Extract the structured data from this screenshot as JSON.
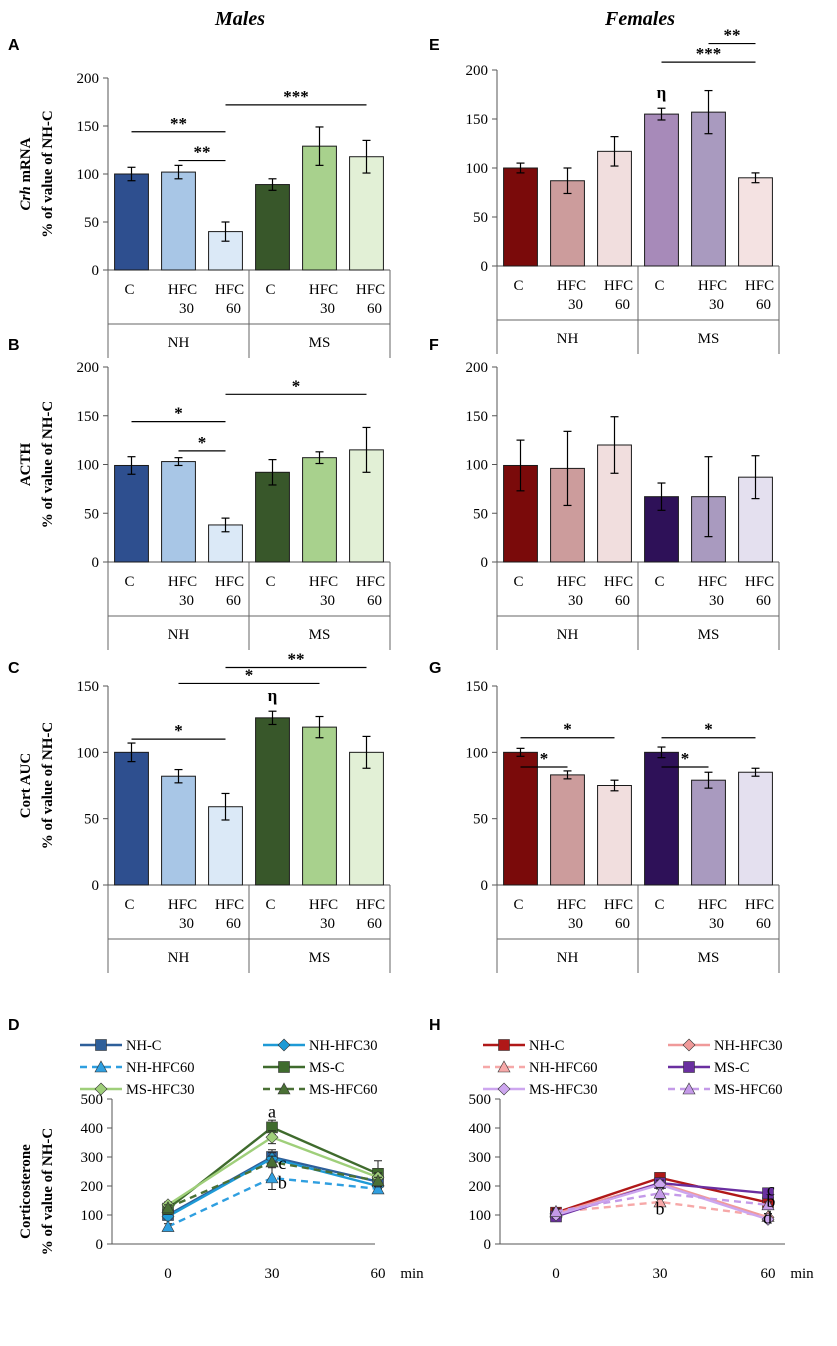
{
  "headers": {
    "males": "Males",
    "females": "Females"
  },
  "chart_data": [
    {
      "panel": "A",
      "type": "bar",
      "column": "males",
      "ylabel_italic": "Crh",
      "ylabel_rest": " mRNA",
      "ylabel2": "% of value  of NH-C",
      "ylim": [
        0,
        200
      ],
      "yticks": [
        0,
        50,
        100,
        150,
        200
      ],
      "categories": [
        [
          "C"
        ],
        [
          "HFC",
          "30"
        ],
        [
          "HFC",
          "60"
        ],
        [
          "C"
        ],
        [
          "HFC",
          "30"
        ],
        [
          "HFC",
          "60"
        ]
      ],
      "groups": [
        "NH",
        "MS"
      ],
      "values": [
        100,
        102,
        40,
        89,
        129,
        118
      ],
      "errors": [
        7,
        7,
        10,
        6,
        20,
        17
      ],
      "colors": [
        "#2e4f8f",
        "#a8c6e6",
        "#dbe9f7",
        "#38572a",
        "#a8d18d",
        "#e2f0d6"
      ],
      "brackets": [
        {
          "from": 0,
          "to": 2,
          "level": 0.72,
          "label": "**"
        },
        {
          "from": 1,
          "to": 2,
          "level": 0.57,
          "label": "**"
        },
        {
          "from": 2,
          "to": 5,
          "level": 0.86,
          "label": "***"
        }
      ],
      "markers": []
    },
    {
      "panel": "E",
      "type": "bar",
      "column": "females",
      "ylabel_italic": "",
      "ylabel_rest": "",
      "ylabel2": "",
      "ylim": [
        0,
        200
      ],
      "yticks": [
        0,
        50,
        100,
        150,
        200
      ],
      "categories": [
        [
          "C"
        ],
        [
          "HFC",
          "30"
        ],
        [
          "HFC",
          "60"
        ],
        [
          "C"
        ],
        [
          "HFC",
          "30"
        ],
        [
          "HFC",
          "60"
        ]
      ],
      "groups": [
        "NH",
        "MS"
      ],
      "values": [
        100,
        87,
        117,
        155,
        157,
        90
      ],
      "errors": [
        5,
        13,
        15,
        6,
        22,
        5
      ],
      "colors": [
        "#7a0a0a",
        "#cc9c9c",
        "#f1dede",
        "#a78ab9",
        "#a99abf",
        "#f4e2e2"
      ],
      "brackets": [
        {
          "from": 3,
          "to": 5,
          "level": 1.04,
          "label": "***"
        },
        {
          "from": 4,
          "to": 5,
          "level": 1.135,
          "label": "**"
        }
      ],
      "markers": [
        {
          "index": 3,
          "label": "η"
        }
      ]
    },
    {
      "panel": "B",
      "type": "bar",
      "column": "males",
      "ylabel_italic": "",
      "ylabel_rest": "ACTH",
      "ylabel2": "% of value  of NH-C",
      "ylim": [
        0,
        200
      ],
      "yticks": [
        0,
        50,
        100,
        150,
        200
      ],
      "categories": [
        [
          "C"
        ],
        [
          "HFC",
          "30"
        ],
        [
          "HFC",
          "60"
        ],
        [
          "C"
        ],
        [
          "HFC",
          "30"
        ],
        [
          "HFC",
          "60"
        ]
      ],
      "groups": [
        "NH",
        "MS"
      ],
      "values": [
        99,
        103,
        38,
        92,
        107,
        115
      ],
      "errors": [
        9,
        4,
        7,
        13,
        6,
        23
      ],
      "colors": [
        "#2e4f8f",
        "#a8c6e6",
        "#dbe9f7",
        "#38572a",
        "#a8d18d",
        "#e2f0d6"
      ],
      "brackets": [
        {
          "from": 0,
          "to": 2,
          "level": 0.72,
          "label": "*"
        },
        {
          "from": 1,
          "to": 2,
          "level": 0.57,
          "label": "*"
        },
        {
          "from": 2,
          "to": 5,
          "level": 0.86,
          "label": "*"
        }
      ],
      "markers": []
    },
    {
      "panel": "F",
      "type": "bar",
      "column": "females",
      "ylabel_italic": "",
      "ylabel_rest": "",
      "ylabel2": "",
      "ylim": [
        0,
        200
      ],
      "yticks": [
        0,
        50,
        100,
        150,
        200
      ],
      "categories": [
        [
          "C"
        ],
        [
          "HFC",
          "30"
        ],
        [
          "HFC",
          "60"
        ],
        [
          "C"
        ],
        [
          "HFC",
          "30"
        ],
        [
          "HFC",
          "60"
        ]
      ],
      "groups": [
        "NH",
        "MS"
      ],
      "values": [
        99,
        96,
        120,
        67,
        67,
        87
      ],
      "errors": [
        26,
        38,
        29,
        14,
        41,
        22
      ],
      "colors": [
        "#7a0a0a",
        "#cc9c9c",
        "#f1dede",
        "#2e1158",
        "#a99abf",
        "#e4e0ef"
      ],
      "brackets": [],
      "markers": []
    },
    {
      "panel": "C",
      "type": "bar",
      "column": "males",
      "ylabel_italic": "",
      "ylabel_rest": "Cort AUC",
      "ylabel2": "% of value  of NH-C",
      "ylim": [
        0,
        150
      ],
      "yticks": [
        0,
        50,
        100,
        150
      ],
      "categories": [
        [
          "C"
        ],
        [
          "HFC",
          "30"
        ],
        [
          "HFC",
          "60"
        ],
        [
          "C"
        ],
        [
          "HFC",
          "30"
        ],
        [
          "HFC",
          "60"
        ]
      ],
      "groups": [
        "NH",
        "MS"
      ],
      "values": [
        100,
        82,
        59,
        126,
        119,
        100
      ],
      "errors": [
        7,
        5,
        10,
        5,
        8,
        12
      ],
      "colors": [
        "#2e4f8f",
        "#a8c6e6",
        "#dbe9f7",
        "#38572a",
        "#a8d18d",
        "#e2f0d6"
      ],
      "brackets": [
        {
          "from": 0,
          "to": 2,
          "level": 0.733,
          "label": "*"
        },
        {
          "from": 1,
          "to": 4,
          "level": 1.013,
          "label": "*"
        },
        {
          "from": 2,
          "to": 5,
          "level": 1.093,
          "label": "**"
        }
      ],
      "markers": [
        {
          "index": 3,
          "label": "η"
        }
      ]
    },
    {
      "panel": "G",
      "type": "bar",
      "column": "females",
      "ylabel_italic": "",
      "ylabel_rest": "",
      "ylabel2": "",
      "ylim": [
        0,
        150
      ],
      "yticks": [
        0,
        50,
        100,
        150
      ],
      "categories": [
        [
          "C"
        ],
        [
          "HFC",
          "30"
        ],
        [
          "HFC",
          "60"
        ],
        [
          "C"
        ],
        [
          "HFC",
          "30"
        ],
        [
          "HFC",
          "60"
        ]
      ],
      "groups": [
        "NH",
        "MS"
      ],
      "values": [
        100,
        83,
        75,
        100,
        79,
        85
      ],
      "errors": [
        3,
        3,
        4,
        4,
        6,
        3
      ],
      "colors": [
        "#7a0a0a",
        "#cc9c9c",
        "#f1dede",
        "#2e1158",
        "#a99abf",
        "#e4e0ef"
      ],
      "brackets": [
        {
          "from": 0,
          "to": 1,
          "level": 0.593,
          "label": "*"
        },
        {
          "from": 0,
          "to": 2,
          "level": 0.74,
          "label": "*"
        },
        {
          "from": 3,
          "to": 4,
          "level": 0.593,
          "label": "*"
        },
        {
          "from": 3,
          "to": 5,
          "level": 0.74,
          "label": "*"
        }
      ],
      "markers": []
    },
    {
      "panel": "D",
      "type": "line",
      "column": "males",
      "ylabel": "Corticosterone",
      "ylabel2": "% of value  of NH-C",
      "x": [
        0,
        30,
        60
      ],
      "xlabel": "min",
      "ylim": [
        0,
        500
      ],
      "yticks": [
        0,
        100,
        200,
        300,
        400,
        500
      ],
      "series": [
        {
          "name": "NH-C",
          "values": [
            100,
            300,
            215
          ],
          "errors": [
            8,
            25,
            10
          ],
          "color": "#2e5f9a",
          "dash": false,
          "marker": "square"
        },
        {
          "name": "NH-HFC30",
          "values": [
            95,
            295,
            200
          ],
          "errors": [
            8,
            20,
            10
          ],
          "color": "#1e9ad6",
          "dash": false,
          "marker": "diamond"
        },
        {
          "name": "NH-HFC60",
          "values": [
            60,
            228,
            190
          ],
          "errors": [
            10,
            40,
            10
          ],
          "color": "#2f9fe0",
          "dash": true,
          "marker": "triangle"
        },
        {
          "name": "MS-C",
          "values": [
            122,
            402,
            242
          ],
          "errors": [
            20,
            25,
            45
          ],
          "color": "#3f6b2d",
          "dash": false,
          "marker": "square"
        },
        {
          "name": "MS-HFC30",
          "values": [
            135,
            368,
            230
          ],
          "errors": [
            10,
            22,
            15
          ],
          "color": "#9fcf7a",
          "dash": false,
          "marker": "diamond"
        },
        {
          "name": "MS-HFC60",
          "values": [
            125,
            283,
            218
          ],
          "errors": [
            10,
            20,
            12
          ],
          "color": "#4a7035",
          "dash": true,
          "marker": "triangle"
        }
      ],
      "annotations": [
        {
          "label": "a",
          "x": 30,
          "y": 436
        },
        {
          "label": "c",
          "x": 33,
          "y": 258
        },
        {
          "label": "b",
          "x": 33,
          "y": 192
        }
      ]
    },
    {
      "panel": "H",
      "type": "line",
      "column": "females",
      "ylabel": "",
      "ylabel2": "",
      "x": [
        0,
        30,
        60
      ],
      "xlabel": "min",
      "ylim": [
        0,
        500
      ],
      "yticks": [
        0,
        100,
        200,
        300,
        400,
        500
      ],
      "series": [
        {
          "name": "NH-C",
          "values": [
            108,
            228,
            143
          ],
          "errors": [
            8,
            10,
            10
          ],
          "color": "#b01818",
          "dash": false,
          "marker": "square"
        },
        {
          "name": "NH-HFC30",
          "values": [
            105,
            210,
            92
          ],
          "errors": [
            8,
            10,
            8
          ],
          "color": "#f09a9a",
          "dash": false,
          "marker": "diamond"
        },
        {
          "name": "NH-HFC60",
          "values": [
            110,
            145,
            95
          ],
          "errors": [
            8,
            15,
            10
          ],
          "color": "#f6a8a8",
          "dash": true,
          "marker": "triangle"
        },
        {
          "name": "MS-C",
          "values": [
            95,
            210,
            175
          ],
          "errors": [
            12,
            15,
            15
          ],
          "color": "#6a2fa0",
          "dash": false,
          "marker": "square"
        },
        {
          "name": "MS-HFC30",
          "values": [
            100,
            205,
            85
          ],
          "errors": [
            10,
            15,
            8
          ],
          "color": "#cda6ef",
          "dash": false,
          "marker": "diamond"
        },
        {
          "name": "MS-HFC60",
          "values": [
            112,
            175,
            135
          ],
          "errors": [
            10,
            20,
            10
          ],
          "color": "#c49ae8",
          "dash": true,
          "marker": "triangle"
        }
      ],
      "annotations": [
        {
          "label": "c",
          "x": 62,
          "y": 168
        },
        {
          "label": "b",
          "x": 62,
          "y": 128
        },
        {
          "label": "b",
          "x": 30,
          "y": 102
        },
        {
          "label": "d",
          "x": 61,
          "y": 70
        }
      ]
    }
  ]
}
